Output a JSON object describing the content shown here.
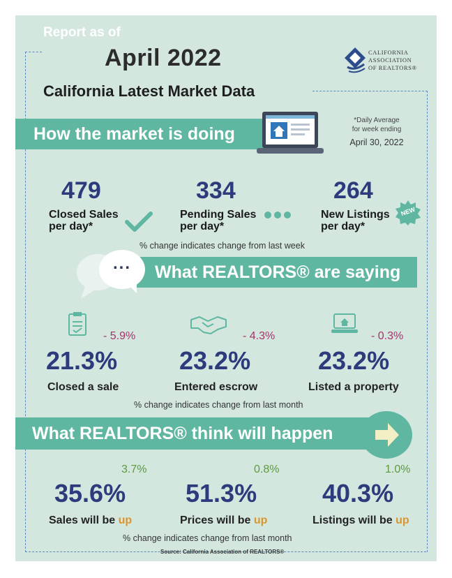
{
  "header": {
    "report_label": "Report as of",
    "month": "April 2022",
    "subtitle": "California Latest Market Data",
    "logo_lines": [
      "CALIFORNIA",
      "ASSOCIATION",
      "OF REALTORS®"
    ]
  },
  "market": {
    "banner": "How the market is doing",
    "daily_note_line1": "*Daily Average",
    "daily_note_line2": "for week ending",
    "daily_note_date": "April 30, 2022",
    "stats": [
      {
        "value": "479",
        "label1": "Closed Sales",
        "label2": "per day*",
        "icon": "check-icon"
      },
      {
        "value": "334",
        "label1": "Pending Sales",
        "label2": "per day*",
        "icon": "dots-icon"
      },
      {
        "value": "264",
        "label1": "New Listings",
        "label2": "per day*",
        "icon": "new-badge-icon",
        "badge": "NEW"
      }
    ],
    "note": "% change indicates change from last week"
  },
  "saying": {
    "banner": "What REALTORS® are saying",
    "bubble": "...",
    "items": [
      {
        "percent": "21.3%",
        "change": "- 5.9%",
        "label": "Closed a sale",
        "icon": "clipboard-icon"
      },
      {
        "percent": "23.2%",
        "change": "- 4.3%",
        "label": "Entered escrow",
        "icon": "handshake-icon"
      },
      {
        "percent": "23.2%",
        "change": "- 0.3%",
        "label": "Listed a property",
        "icon": "laptop-icon"
      }
    ],
    "note": "% change indicates change from last month"
  },
  "think": {
    "banner": "What REALTORS® think will happen",
    "items": [
      {
        "percent": "35.6%",
        "change": "3.7%",
        "label": "Sales will be ",
        "up": "up"
      },
      {
        "percent": "51.3%",
        "change": "0.8%",
        "label": "Prices will be ",
        "up": "up"
      },
      {
        "percent": "40.3%",
        "change": "1.0%",
        "label": "Listings will be ",
        "up": "up"
      }
    ],
    "note": "% change indicates change from last month"
  },
  "source": "Source: California Association of REALTORS®",
  "colors": {
    "background": "#d3e7df",
    "banner": "#5fb6a1",
    "number": "#2d3a7c",
    "negative": "#a7326a",
    "positive": "#5b9b3c",
    "up": "#d89632"
  }
}
